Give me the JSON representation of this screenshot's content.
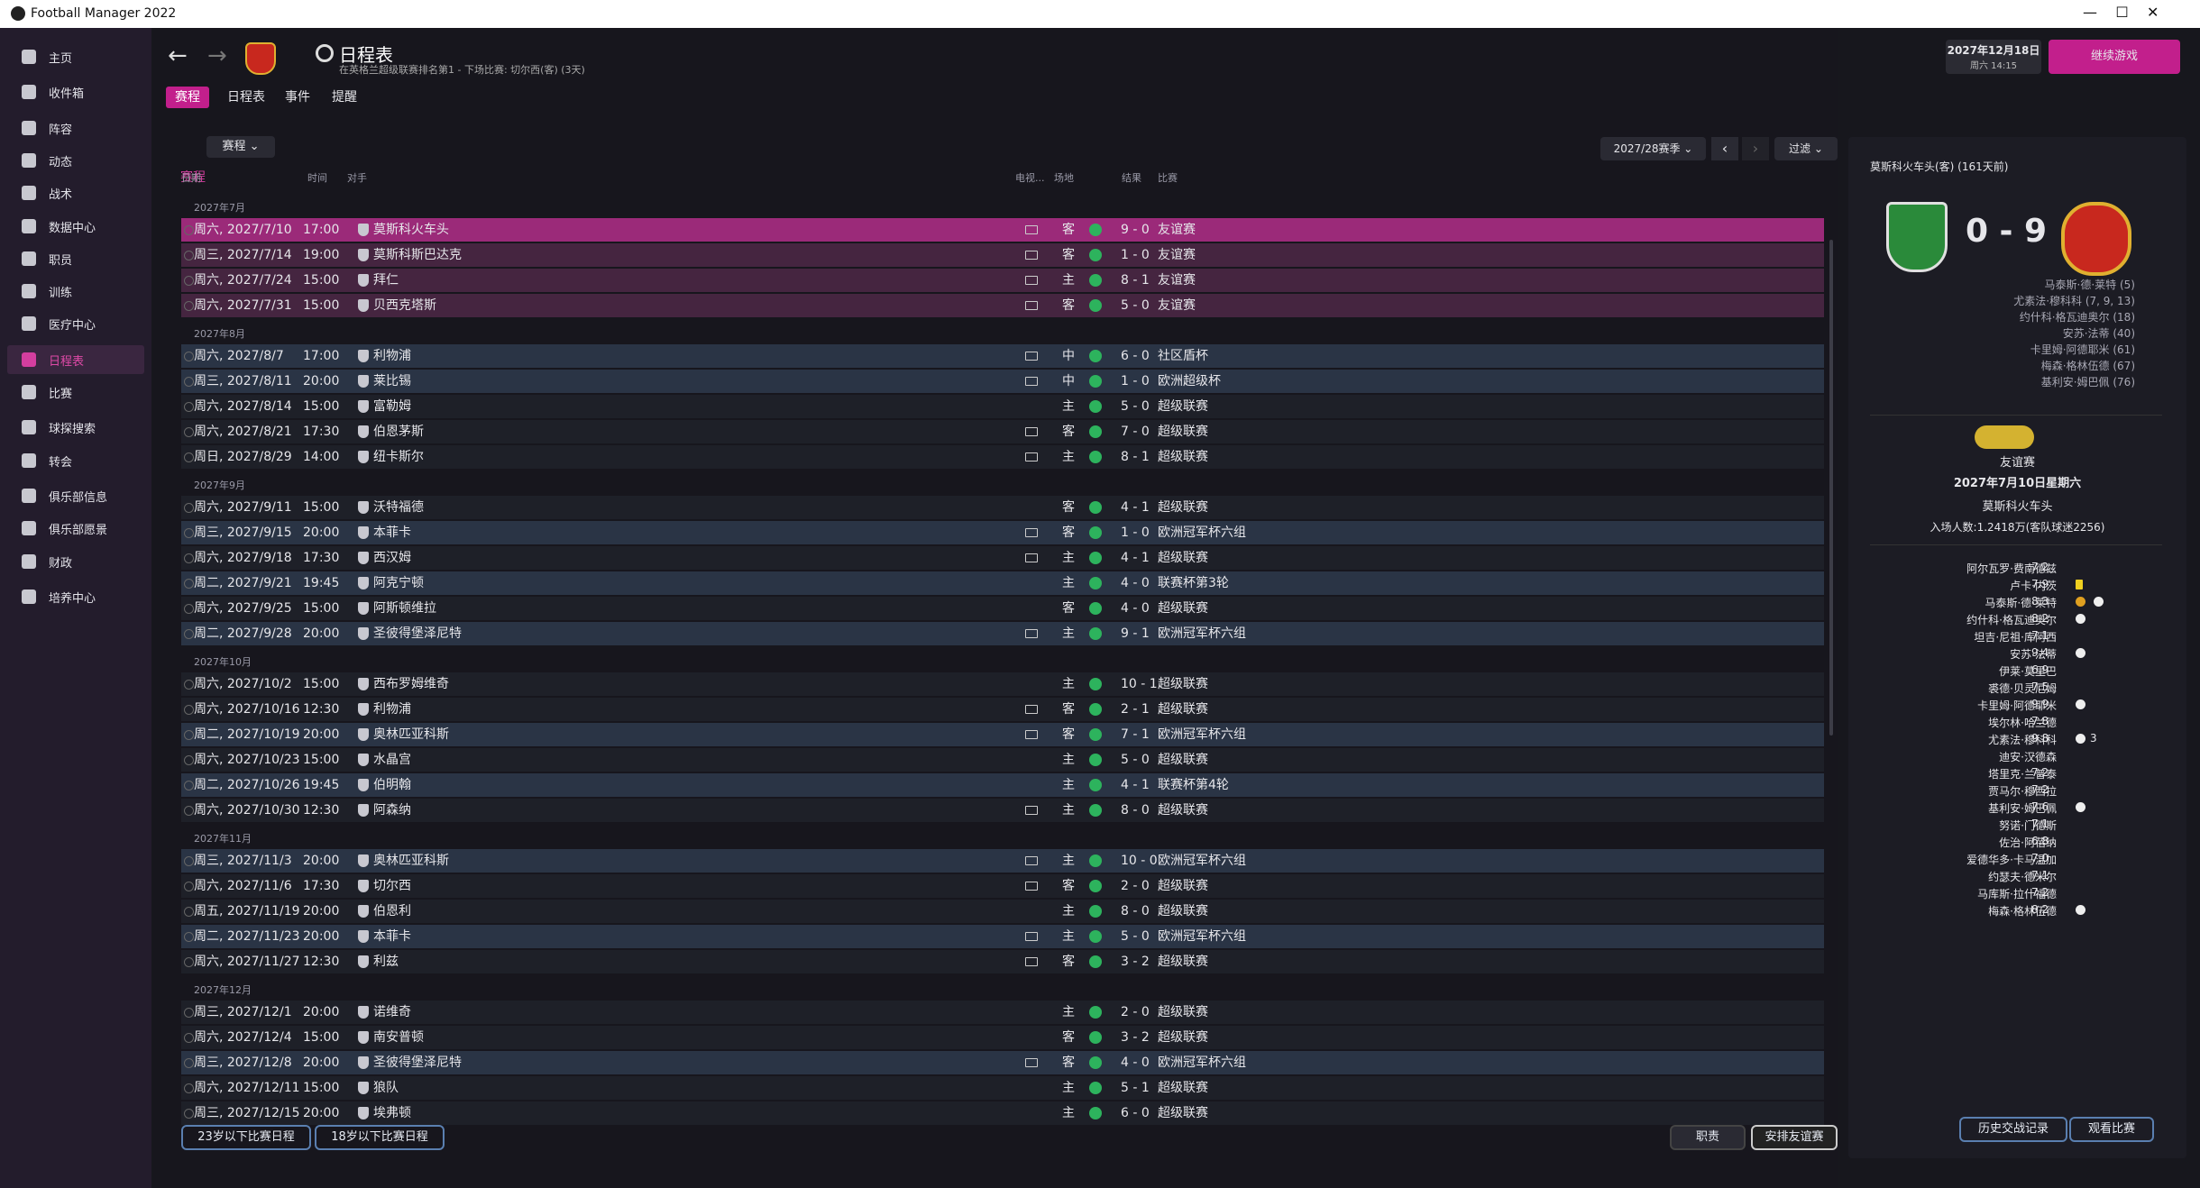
{
  "window": {
    "title": "Football Manager 2022"
  },
  "sidebar": [
    "主页",
    "收件箱",
    "阵容",
    "动态",
    "战术",
    "数据中心",
    "职员",
    "训练",
    "医疗中心",
    "日程表",
    "比赛",
    "球探搜索",
    "转会",
    "俱乐部信息",
    "俱乐部愿景",
    "财政",
    "培养中心"
  ],
  "sidebar_active": 9,
  "header": {
    "title": "日程表",
    "subtitle": "在英格兰超级联赛排名第1 - 下场比赛: 切尔西(客) (3天)",
    "tabs": [
      "赛程",
      "日程表",
      "事件",
      "提醒"
    ],
    "date": "2027年12月18日",
    "time": "周六 14:15",
    "continue": "继续游戏"
  },
  "filters": {
    "label": "赛程",
    "dropdown": "赛程",
    "season": "2027/28赛季",
    "filter": "过滤"
  },
  "columns": [
    "日期",
    "时间",
    "对手",
    "电视...",
    "场地",
    "结果",
    "比赛"
  ],
  "fixtures": [
    {
      "month": "2027年7月",
      "rows": [
        {
          "date": "周六, 2027/7/10",
          "time": "17:00",
          "opponent": "莫斯科火车头",
          "tv": true,
          "venue": "客",
          "result": "9 - 0",
          "competition": "友谊赛",
          "bg": "#9b2a79"
        },
        {
          "date": "周三, 2027/7/14",
          "time": "19:00",
          "opponent": "莫斯科斯巴达克",
          "tv": true,
          "venue": "客",
          "result": "1 - 0",
          "competition": "友谊赛",
          "bg": "#452540"
        },
        {
          "date": "周六, 2027/7/24",
          "time": "15:00",
          "opponent": "拜仁",
          "tv": true,
          "venue": "主",
          "result": "8 - 1",
          "competition": "友谊赛",
          "bg": "#452540"
        },
        {
          "date": "周六, 2027/7/31",
          "time": "15:00",
          "opponent": "贝西克塔斯",
          "tv": true,
          "venue": "客",
          "result": "5 - 0",
          "competition": "友谊赛",
          "bg": "#452540"
        }
      ]
    },
    {
      "month": "2027年8月",
      "rows": [
        {
          "date": "周六, 2027/8/7",
          "time": "17:00",
          "opponent": "利物浦",
          "tv": true,
          "venue": "中",
          "result": "6 - 0",
          "competition": "社区盾杯",
          "bg": "#2a3445"
        },
        {
          "date": "周三, 2027/8/11",
          "time": "20:00",
          "opponent": "莱比锡",
          "tv": true,
          "venue": "中",
          "result": "1 - 0",
          "competition": "欧洲超级杯",
          "bg": "#2a3445"
        },
        {
          "date": "周六, 2027/8/14",
          "time": "15:00",
          "opponent": "富勒姆",
          "tv": false,
          "venue": "主",
          "result": "5 - 0",
          "competition": "超级联赛",
          "bg": "#1e2028"
        },
        {
          "date": "周六, 2027/8/21",
          "time": "17:30",
          "opponent": "伯恩茅斯",
          "tv": true,
          "venue": "客",
          "result": "7 - 0",
          "competition": "超级联赛",
          "bg": "#1e2028"
        },
        {
          "date": "周日, 2027/8/29",
          "time": "14:00",
          "opponent": "纽卡斯尔",
          "tv": true,
          "venue": "主",
          "result": "8 - 1",
          "competition": "超级联赛",
          "bg": "#1e2028"
        }
      ]
    },
    {
      "month": "2027年9月",
      "rows": [
        {
          "date": "周六, 2027/9/11",
          "time": "15:00",
          "opponent": "沃特福德",
          "tv": false,
          "venue": "客",
          "result": "4 - 1",
          "competition": "超级联赛",
          "bg": "#1e2028"
        },
        {
          "date": "周三, 2027/9/15",
          "time": "20:00",
          "opponent": "本菲卡",
          "tv": true,
          "venue": "客",
          "result": "1 - 0",
          "competition": "欧洲冠军杯六组",
          "bg": "#2a3445"
        },
        {
          "date": "周六, 2027/9/18",
          "time": "17:30",
          "opponent": "西汉姆",
          "tv": true,
          "venue": "主",
          "result": "4 - 1",
          "competition": "超级联赛",
          "bg": "#1e2028"
        },
        {
          "date": "周二, 2027/9/21",
          "time": "19:45",
          "opponent": "阿克宁顿",
          "tv": false,
          "venue": "主",
          "result": "4 - 0",
          "competition": "联赛杯第3轮",
          "bg": "#2a3445"
        },
        {
          "date": "周六, 2027/9/25",
          "time": "15:00",
          "opponent": "阿斯顿维拉",
          "tv": false,
          "venue": "客",
          "result": "4 - 0",
          "competition": "超级联赛",
          "bg": "#1e2028"
        },
        {
          "date": "周二, 2027/9/28",
          "time": "20:00",
          "opponent": "圣彼得堡泽尼特",
          "tv": true,
          "venue": "主",
          "result": "9 - 1",
          "competition": "欧洲冠军杯六组",
          "bg": "#2a3445"
        }
      ]
    },
    {
      "month": "2027年10月",
      "rows": [
        {
          "date": "周六, 2027/10/2",
          "time": "15:00",
          "opponent": "西布罗姆维奇",
          "tv": false,
          "venue": "主",
          "result": "10 - 1",
          "competition": "超级联赛",
          "bg": "#1e2028"
        },
        {
          "date": "周六, 2027/10/16",
          "time": "12:30",
          "opponent": "利物浦",
          "tv": true,
          "venue": "客",
          "result": "2 - 1",
          "competition": "超级联赛",
          "bg": "#1e2028"
        },
        {
          "date": "周二, 2027/10/19",
          "time": "20:00",
          "opponent": "奥林匹亚科斯",
          "tv": true,
          "venue": "客",
          "result": "7 - 1",
          "competition": "欧洲冠军杯六组",
          "bg": "#2a3445"
        },
        {
          "date": "周六, 2027/10/23",
          "time": "15:00",
          "opponent": "水晶宫",
          "tv": false,
          "venue": "主",
          "result": "5 - 0",
          "competition": "超级联赛",
          "bg": "#1e2028"
        },
        {
          "date": "周二, 2027/10/26",
          "time": "19:45",
          "opponent": "伯明翰",
          "tv": false,
          "venue": "主",
          "result": "4 - 1",
          "competition": "联赛杯第4轮",
          "bg": "#2a3445"
        },
        {
          "date": "周六, 2027/10/30",
          "time": "12:30",
          "opponent": "阿森纳",
          "tv": true,
          "venue": "主",
          "result": "8 - 0",
          "competition": "超级联赛",
          "bg": "#1e2028"
        }
      ]
    },
    {
      "month": "2027年11月",
      "rows": [
        {
          "date": "周三, 2027/11/3",
          "time": "20:00",
          "opponent": "奥林匹亚科斯",
          "tv": true,
          "venue": "主",
          "result": "10 - 0",
          "competition": "欧洲冠军杯六组",
          "bg": "#2a3445"
        },
        {
          "date": "周六, 2027/11/6",
          "time": "17:30",
          "opponent": "切尔西",
          "tv": true,
          "venue": "客",
          "result": "2 - 0",
          "competition": "超级联赛",
          "bg": "#1e2028"
        },
        {
          "date": "周五, 2027/11/19",
          "time": "20:00",
          "opponent": "伯恩利",
          "tv": false,
          "venue": "主",
          "result": "8 - 0",
          "competition": "超级联赛",
          "bg": "#1e2028"
        },
        {
          "date": "周二, 2027/11/23",
          "time": "20:00",
          "opponent": "本菲卡",
          "tv": true,
          "venue": "主",
          "result": "5 - 0",
          "competition": "欧洲冠军杯六组",
          "bg": "#2a3445"
        },
        {
          "date": "周六, 2027/11/27",
          "time": "12:30",
          "opponent": "利兹",
          "tv": true,
          "venue": "客",
          "result": "3 - 2",
          "competition": "超级联赛",
          "bg": "#1e2028"
        }
      ]
    },
    {
      "month": "2027年12月",
      "rows": [
        {
          "date": "周三, 2027/12/1",
          "time": "20:00",
          "opponent": "诺维奇",
          "tv": false,
          "venue": "主",
          "result": "2 - 0",
          "competition": "超级联赛",
          "bg": "#1e2028"
        },
        {
          "date": "周六, 2027/12/4",
          "time": "15:00",
          "opponent": "南安普顿",
          "tv": false,
          "venue": "客",
          "result": "3 - 2",
          "competition": "超级联赛",
          "bg": "#1e2028"
        },
        {
          "date": "周三, 2027/12/8",
          "time": "20:00",
          "opponent": "圣彼得堡泽尼特",
          "tv": true,
          "venue": "客",
          "result": "4 - 0",
          "competition": "欧洲冠军杯六组",
          "bg": "#2a3445"
        },
        {
          "date": "周六, 2027/12/11",
          "time": "15:00",
          "opponent": "狼队",
          "tv": false,
          "venue": "主",
          "result": "5 - 1",
          "competition": "超级联赛",
          "bg": "#1e2028"
        },
        {
          "date": "周三, 2027/12/15",
          "time": "20:00",
          "opponent": "埃弗顿",
          "tv": false,
          "venue": "主",
          "result": "6 - 0",
          "competition": "超级联赛",
          "bg": "#1e2028"
        }
      ]
    }
  ],
  "footer_buttons": [
    "23岁以下比赛日程",
    "18岁以下比赛日程",
    "职责",
    "安排友谊赛"
  ],
  "match": {
    "heading": "莫斯科火车头(客) (161天前)",
    "score": "0 - 9",
    "scorers": [
      "马泰斯·德·莱特 (5)",
      "尤素法·穆科科 (7, 9, 13)",
      "约什科·格瓦迪奥尔 (18)",
      "安苏·法蒂 (40)",
      "卡里姆·阿德耶米 (61)",
      "梅森·格林伍德 (67)",
      "基利安·姆巴佩 (76)"
    ],
    "competition": "友谊赛",
    "date": "2027年7月10日星期六",
    "stadium": "莫斯科火车头",
    "attendance": "入场人数:1.2418万(客队球迷2256)",
    "ratings": [
      {
        "name": "阿尔瓦罗·费南德兹",
        "rating": "7.2"
      },
      {
        "name": "卢卡·内茨",
        "rating": "7.9",
        "icons": [
          "card"
        ]
      },
      {
        "name": "马泰斯·德·莱特",
        "rating": "8.3",
        "icons": [
          "goal",
          "ball"
        ]
      },
      {
        "name": "约什科·格瓦迪奥尔",
        "rating": "8.2",
        "icons": [
          "ball"
        ]
      },
      {
        "name": "坦吉·尼祖·库阿西",
        "rating": "7.1"
      },
      {
        "name": "安苏·法蒂",
        "rating": "9.4",
        "icons": [
          "ball"
        ]
      },
      {
        "name": "伊莱·莫里巴",
        "rating": "6.9"
      },
      {
        "name": "裘德·贝灵厄姆",
        "rating": "7.5"
      },
      {
        "name": "卡里姆·阿德耶米",
        "rating": "9.9",
        "icons": [
          "ball"
        ]
      },
      {
        "name": "埃尔林·哈兰德",
        "rating": "7.8"
      },
      {
        "name": "尤素法·穆科科",
        "rating": "9.8",
        "icons": [
          "ball"
        ],
        "goals": "3"
      },
      {
        "name": "迪安·汉德森",
        "rating": "-"
      },
      {
        "name": "塔里克·兰普泰",
        "rating": "7.2"
      },
      {
        "name": "贾马尔·穆西拉",
        "rating": "7.2"
      },
      {
        "name": "基利安·姆巴佩",
        "rating": "7.6",
        "icons": [
          "ball"
        ]
      },
      {
        "name": "努诺·门德斯",
        "rating": "7.1"
      },
      {
        "name": "佐治·阿蓓纳",
        "rating": "6.8"
      },
      {
        "name": "爱德华多·卡马温加",
        "rating": "7.0"
      },
      {
        "name": "约瑟夫·德米尔",
        "rating": "7.1"
      },
      {
        "name": "马库斯·拉什福德",
        "rating": "7.2"
      },
      {
        "name": "梅森·格林伍德",
        "rating": "8.2",
        "icons": [
          "ball"
        ]
      }
    ],
    "buttons": [
      "历史交战记录",
      "观看比赛"
    ]
  }
}
